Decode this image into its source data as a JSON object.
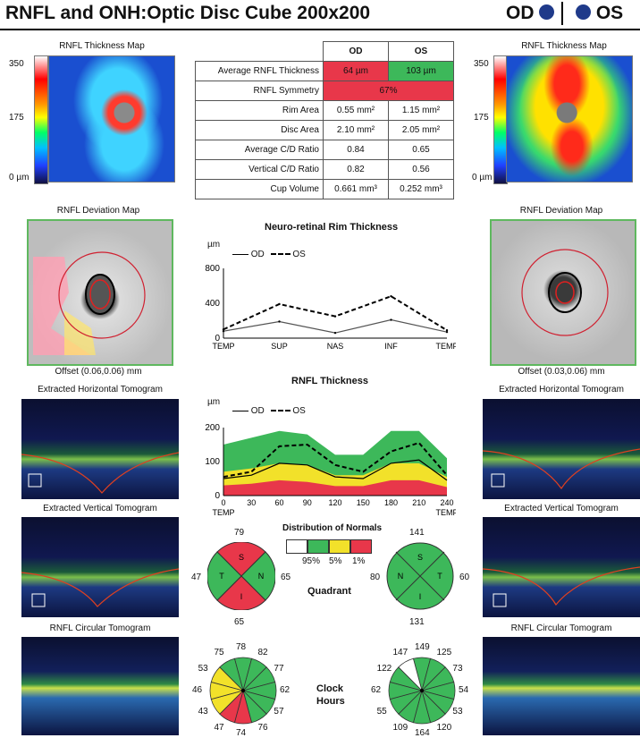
{
  "header": {
    "title": "RNFL and ONH:Optic Disc Cube 200x200",
    "od": "OD",
    "os": "OS"
  },
  "thickness_map": {
    "title": "RNFL Thickness Map",
    "scale_top": "350",
    "scale_mid": "175",
    "scale_bottom": "0 µm"
  },
  "metrics": {
    "col_od": "OD",
    "col_os": "OS",
    "rows": [
      {
        "label": "Average RNFL Thickness",
        "od": "64 µm",
        "os": "103 µm"
      },
      {
        "label": "RNFL Symmetry",
        "both": "67%"
      },
      {
        "label": "Rim Area",
        "od": "0.55 mm²",
        "os": "1.15 mm²"
      },
      {
        "label": "Disc Area",
        "od": "2.10 mm²",
        "os": "2.05 mm²"
      },
      {
        "label": "Average C/D Ratio",
        "od": "0.84",
        "os": "0.65"
      },
      {
        "label": "Vertical C/D Ratio",
        "od": "0.82",
        "os": "0.56"
      },
      {
        "label": "Cup Volume",
        "od": "0.661 mm³",
        "os": "0.252 mm³"
      }
    ],
    "colors": {
      "red": "#e8374a",
      "green": "#3db85a"
    }
  },
  "deviation": {
    "title": "RNFL Deviation Map",
    "offset_od": "Offset  (0.06,0.06) mm",
    "offset_os": "Offset  (0.03,0.06) mm"
  },
  "rim_chart": {
    "title": "Neuro-retinal Rim Thickness",
    "unit": "µm",
    "legend_od": "OD",
    "legend_os": "OS",
    "y_ticks": [
      "800",
      "400",
      "0"
    ],
    "x_ticks": [
      "TEMP",
      "SUP",
      "NAS",
      "INF",
      "TEMP"
    ]
  },
  "rnfl_chart": {
    "title": "RNFL Thickness",
    "unit": "µm",
    "legend_od": "OD",
    "legend_os": "OS",
    "y_ticks": [
      "200",
      "100",
      "0"
    ],
    "x_ticks": [
      "0",
      "30",
      "60",
      "90",
      "120",
      "150",
      "180",
      "210",
      "240"
    ],
    "x_ends": [
      "TEMP",
      "TEMP"
    ]
  },
  "chart_data": [
    {
      "type": "line",
      "title": "Neuro-retinal Rim Thickness",
      "ylabel": "µm",
      "ylim": [
        0,
        800
      ],
      "x": [
        "TEMP",
        "SUP",
        "NAS",
        "INF",
        "TEMP"
      ],
      "series": [
        {
          "name": "OD",
          "values": [
            80,
            190,
            60,
            210,
            70
          ]
        },
        {
          "name": "OS",
          "values": [
            100,
            390,
            250,
            480,
            90
          ]
        }
      ]
    },
    {
      "type": "line",
      "title": "RNFL Thickness",
      "ylabel": "µm",
      "ylim": [
        0,
        200
      ],
      "x": [
        0,
        30,
        60,
        90,
        120,
        150,
        180,
        210,
        240
      ],
      "series": [
        {
          "name": "OD",
          "values": [
            50,
            60,
            95,
            90,
            55,
            50,
            95,
            105,
            45
          ]
        },
        {
          "name": "OS",
          "values": [
            55,
            70,
            145,
            150,
            90,
            70,
            130,
            155,
            60
          ]
        }
      ]
    }
  ],
  "tomograms": {
    "horizontal": "Extracted Horizontal Tomogram",
    "vertical": "Extracted Vertical Tomogram",
    "circular": "RNFL Circular Tomogram"
  },
  "normals": {
    "title": "Distribution of Normals",
    "p95": "95%",
    "p5": "5%",
    "p1": "1%"
  },
  "quadrant": {
    "label": "Quadrant",
    "od": {
      "S": "79",
      "T": "47",
      "N": "65",
      "I": "65"
    },
    "os": {
      "S": "141",
      "N": "80",
      "T": "60",
      "I": "131"
    },
    "letters": {
      "s": "S",
      "t": "T",
      "n": "N",
      "i": "I"
    }
  },
  "clock": {
    "label": "Clock",
    "label2": "Hours",
    "od": [
      "78",
      "82",
      "77",
      "62",
      "57",
      "76",
      "74",
      "47",
      "43",
      "46",
      "53",
      "75"
    ],
    "os": [
      "149",
      "125",
      "73",
      "54",
      "53",
      "120",
      "164",
      "109",
      "55",
      "62",
      "122",
      "147"
    ]
  }
}
